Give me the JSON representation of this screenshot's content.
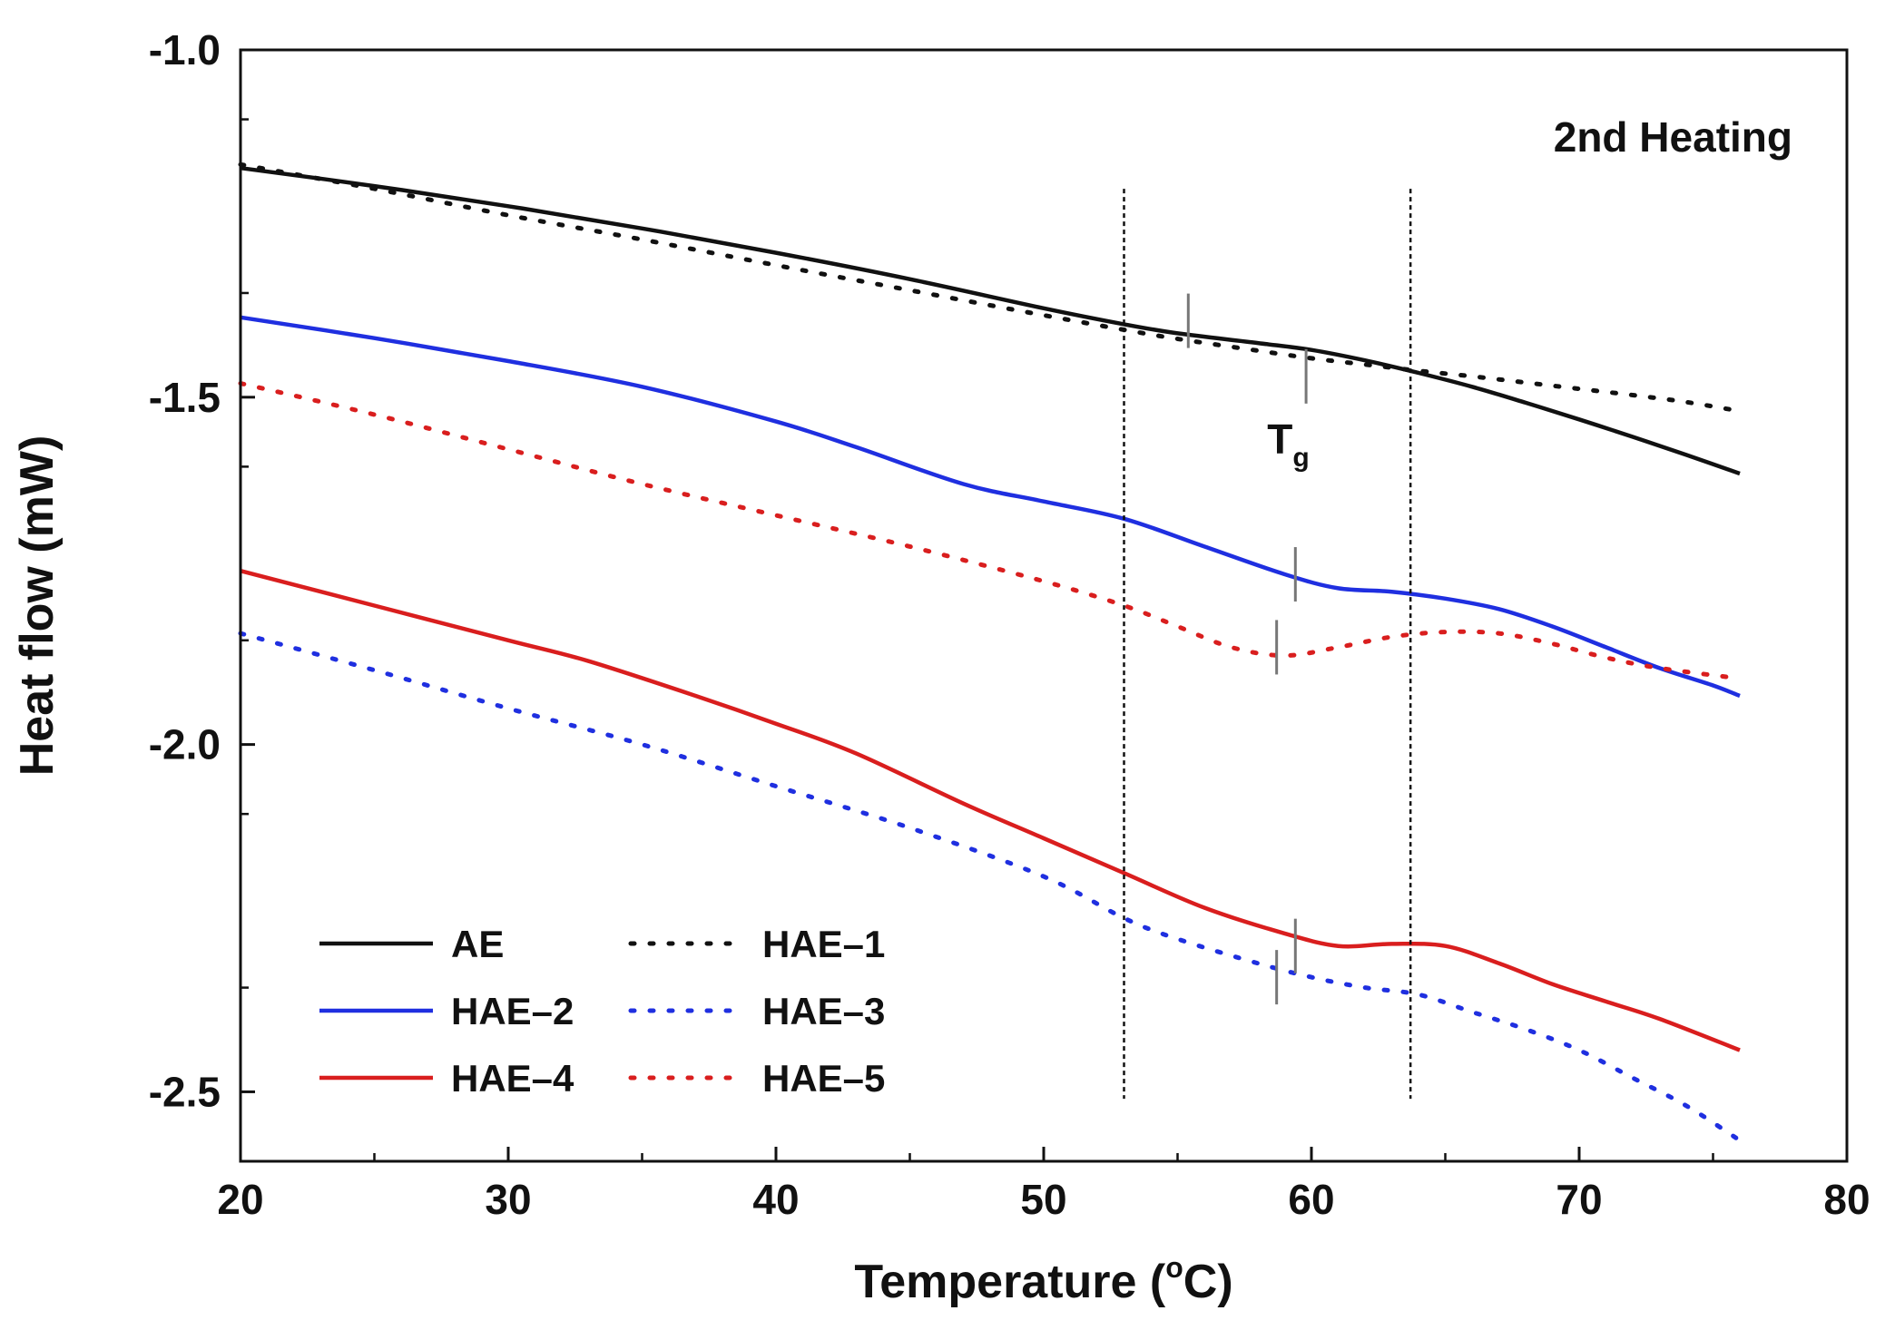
{
  "chart_data": {
    "type": "line",
    "title": "",
    "xlabel": "Temperature",
    "xlabel_unit_sup": "o",
    "xlabel_unit": "C",
    "ylabel": "Heat flow (mW)",
    "xlim": [
      20,
      80
    ],
    "ylim": [
      -2.6,
      -1.0
    ],
    "xticks": [
      20,
      30,
      40,
      50,
      60,
      70,
      80
    ],
    "xtick_labels": [
      "20",
      "30",
      "40",
      "50",
      "60",
      "70",
      "80"
    ],
    "yticks": [
      -1.0,
      -1.5,
      -2.0,
      -2.5
    ],
    "ytick_labels": [
      "-1.0",
      "-1.5",
      "-2.0",
      "-2.5"
    ],
    "grid": false,
    "legend": "bottom-left",
    "annotations": {
      "corner_label": "2nd Heating",
      "tg_main": "T",
      "tg_sub": "g",
      "tg_position": [
        59.5,
        -1.56
      ],
      "reference_lines_x": [
        53,
        63.7
      ],
      "reference_lines_yrange": [
        -2.51,
        -1.2
      ]
    },
    "series": [
      {
        "name": "AE",
        "color": "#111111",
        "style": "solid",
        "x": [
          20,
          25,
          30,
          35,
          40,
          45,
          50,
          53,
          55,
          58,
          60,
          62,
          64,
          66,
          68,
          70,
          72,
          74,
          76
        ],
        "y": [
          -1.17,
          -1.196,
          -1.225,
          -1.257,
          -1.292,
          -1.33,
          -1.372,
          -1.395,
          -1.408,
          -1.422,
          -1.432,
          -1.447,
          -1.465,
          -1.485,
          -1.508,
          -1.532,
          -1.557,
          -1.583,
          -1.61
        ],
        "tg_mark": [
          55.4,
          -1.39
        ]
      },
      {
        "name": "HAE–1",
        "color": "#111111",
        "style": "dotted",
        "x": [
          20,
          25,
          30,
          35,
          40,
          45,
          50,
          53,
          55,
          58,
          60,
          62,
          64,
          66,
          68,
          70,
          72,
          74,
          76
        ],
        "y": [
          -1.165,
          -1.2,
          -1.238,
          -1.273,
          -1.31,
          -1.346,
          -1.382,
          -1.403,
          -1.416,
          -1.433,
          -1.444,
          -1.453,
          -1.462,
          -1.47,
          -1.479,
          -1.488,
          -1.497,
          -1.507,
          -1.52
        ],
        "tg_mark": [
          59.8,
          -1.47
        ]
      },
      {
        "name": "HAE–2",
        "color": "#1f2fe0",
        "style": "solid",
        "x": [
          20,
          25,
          30,
          35,
          40,
          43,
          47,
          50,
          53,
          56,
          59,
          61,
          63,
          65,
          67,
          69,
          71,
          73,
          75,
          76
        ],
        "y": [
          -1.385,
          -1.415,
          -1.448,
          -1.485,
          -1.535,
          -1.572,
          -1.625,
          -1.65,
          -1.675,
          -1.715,
          -1.755,
          -1.775,
          -1.78,
          -1.79,
          -1.805,
          -1.83,
          -1.86,
          -1.89,
          -1.915,
          -1.93
        ],
        "tg_mark": [
          59.4,
          -1.755
        ]
      },
      {
        "name": "HAE–3",
        "color": "#1f2fe0",
        "style": "dotted",
        "x": [
          20,
          25,
          30,
          35,
          40,
          45,
          50,
          53,
          55,
          58,
          60,
          62,
          64,
          66,
          68,
          70,
          72,
          74,
          76
        ],
        "y": [
          -1.84,
          -1.893,
          -1.948,
          -2.0,
          -2.06,
          -2.12,
          -2.19,
          -2.25,
          -2.28,
          -2.315,
          -2.335,
          -2.35,
          -2.36,
          -2.385,
          -2.41,
          -2.44,
          -2.48,
          -2.52,
          -2.57
        ],
        "tg_mark": [
          58.7,
          -2.335
        ]
      },
      {
        "name": "HAE–4",
        "color": "#d91e1e",
        "style": "solid",
        "x": [
          20,
          25,
          30,
          33,
          37,
          40,
          43,
          47,
          50,
          53,
          56,
          59,
          61,
          63,
          65,
          67,
          69,
          71,
          73,
          76
        ],
        "y": [
          -1.75,
          -1.8,
          -1.85,
          -1.88,
          -1.93,
          -1.97,
          -2.013,
          -2.085,
          -2.135,
          -2.185,
          -2.235,
          -2.272,
          -2.29,
          -2.287,
          -2.29,
          -2.315,
          -2.345,
          -2.37,
          -2.395,
          -2.44
        ],
        "tg_mark": [
          59.4,
          -2.29
        ]
      },
      {
        "name": "HAE–5",
        "color": "#d91e1e",
        "style": "dotted",
        "x": [
          20,
          25,
          30,
          35,
          40,
          45,
          50,
          53,
          55,
          57,
          59,
          61,
          63,
          65,
          67,
          69,
          71,
          73,
          76
        ],
        "y": [
          -1.48,
          -1.525,
          -1.575,
          -1.625,
          -1.67,
          -1.715,
          -1.765,
          -1.8,
          -1.83,
          -1.86,
          -1.872,
          -1.86,
          -1.845,
          -1.838,
          -1.84,
          -1.855,
          -1.875,
          -1.89,
          -1.905
        ],
        "tg_mark": [
          58.7,
          -1.86
        ]
      }
    ]
  }
}
